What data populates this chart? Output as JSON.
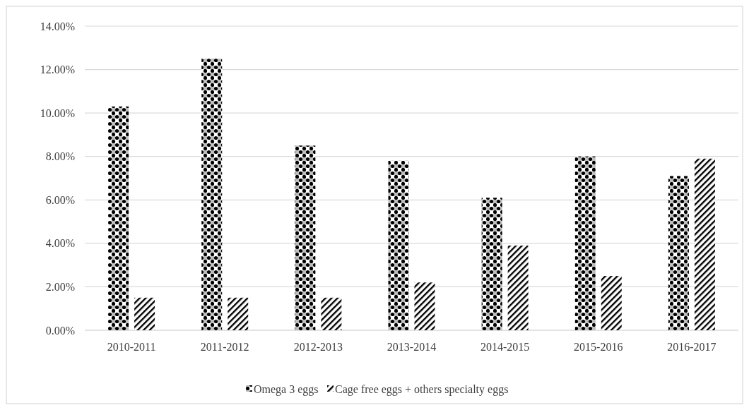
{
  "chart_data": {
    "type": "bar",
    "categories": [
      "2010-2011",
      "2011-2012",
      "2012-2013",
      "2013-2014",
      "2014-2015",
      "2015-2016",
      "2016-2017"
    ],
    "series": [
      {
        "name": "Omega 3 eggs",
        "color": "#000000",
        "values": [
          10.3,
          12.5,
          8.5,
          7.8,
          6.1,
          8.0,
          7.1
        ]
      },
      {
        "name": "Cage free eggs  + others specialty eggs",
        "color": "#000000",
        "values": [
          1.5,
          1.5,
          1.5,
          2.2,
          3.9,
          2.5,
          7.9
        ]
      }
    ],
    "ylim": [
      0,
      14
    ],
    "yticks": [
      {
        "value": 0,
        "label": "0.00%"
      },
      {
        "value": 2,
        "label": "2.00%"
      },
      {
        "value": 4,
        "label": "4.00%"
      },
      {
        "value": 6,
        "label": "6.00%"
      },
      {
        "value": 8,
        "label": "8.00%"
      },
      {
        "value": 10,
        "label": "10.00%"
      },
      {
        "value": 12,
        "label": "12.00%"
      },
      {
        "value": 14,
        "label": "14.00%"
      }
    ],
    "grid": "y",
    "legend": "bottom"
  }
}
